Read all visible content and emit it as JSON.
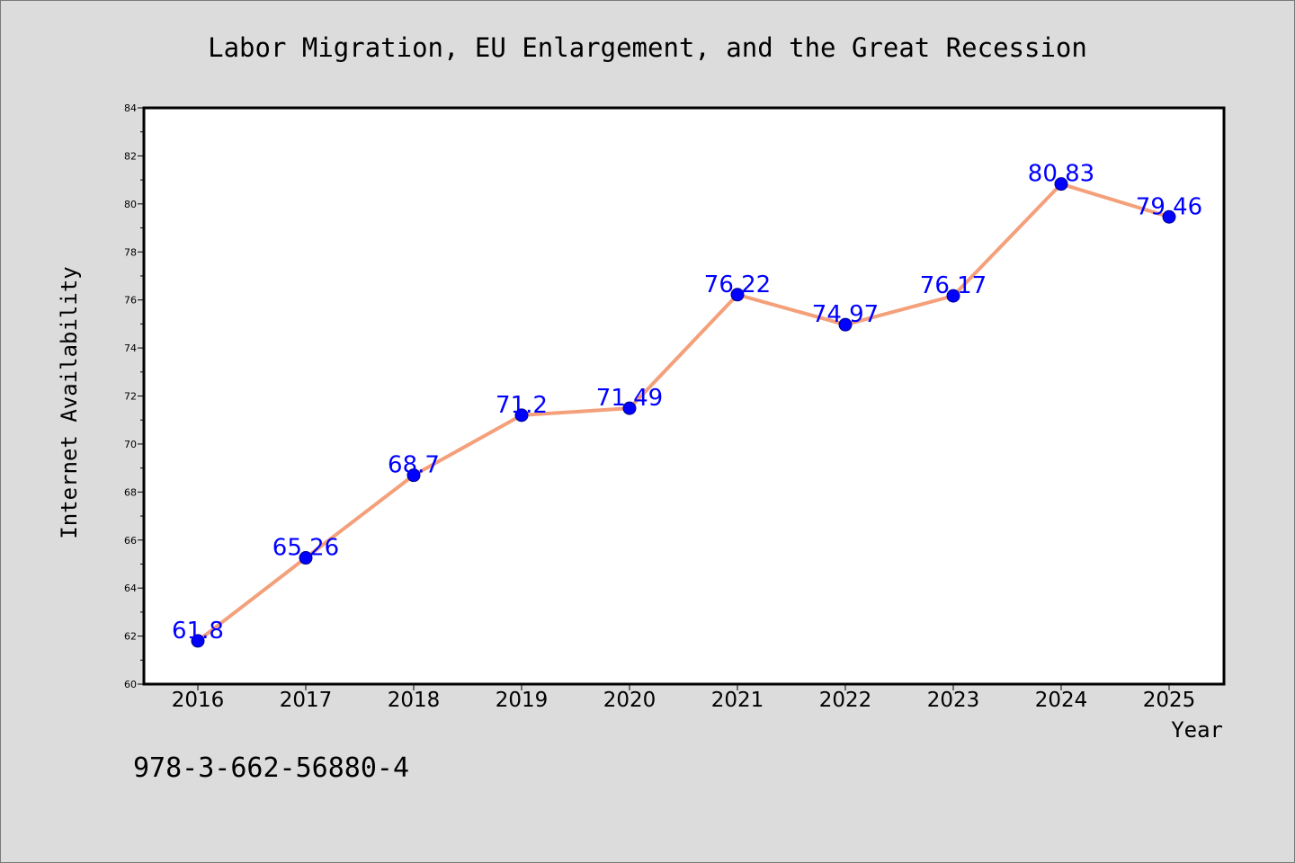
{
  "chart_data": {
    "type": "line",
    "title": "Labor Migration, EU Enlargement, and the Great Recession",
    "xlabel": "Year",
    "ylabel": "Internet Availability",
    "footnote": "978-3-662-56880-4",
    "categories": [
      "2016",
      "2017",
      "2018",
      "2019",
      "2020",
      "2021",
      "2022",
      "2023",
      "2024",
      "2025"
    ],
    "series": [
      {
        "values": [
          61.8,
          65.26,
          68.7,
          71.2,
          71.49,
          76.22,
          74.97,
          76.17,
          80.83,
          79.46
        ],
        "labels": [
          "61.8",
          "65.26",
          "68.7",
          "71.2",
          "71.49",
          "76.22",
          "74.97",
          "76.17",
          "80.83",
          "79.46"
        ]
      }
    ],
    "ylim": [
      60,
      84
    ],
    "y_ticks": [
      60,
      62,
      64,
      66,
      68,
      70,
      72,
      74,
      76,
      78,
      80,
      82,
      84
    ],
    "grid": false,
    "legend": "none",
    "colors": {
      "line": "#f4a07a",
      "marker": "#0000ff",
      "marker_edge": "#00008b",
      "data_label": "#0000ff",
      "background": "#dcdcdc",
      "plot_background": "#ffffff"
    }
  }
}
